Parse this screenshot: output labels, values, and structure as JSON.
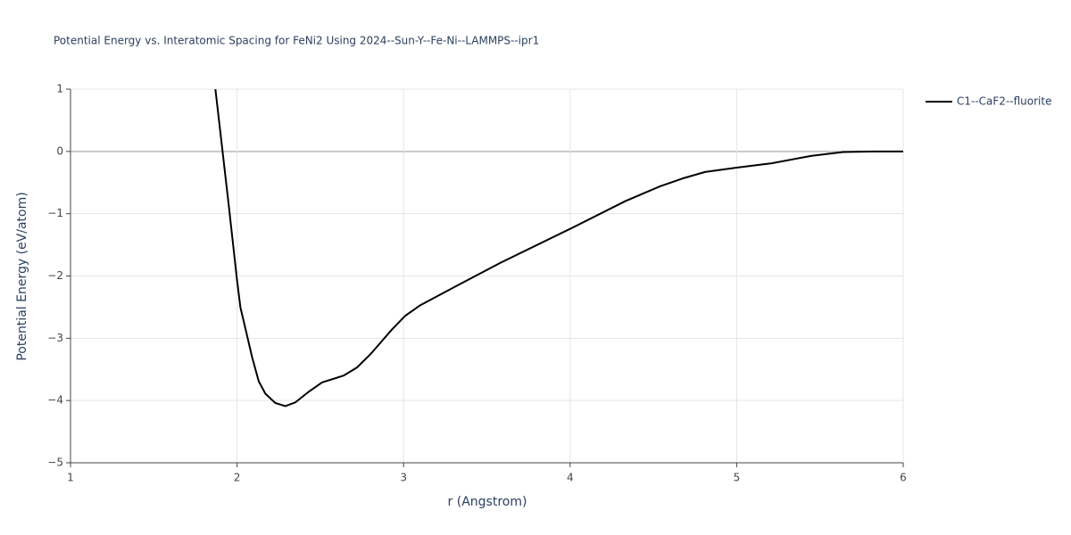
{
  "chart_data": {
    "type": "line",
    "title": "Potential Energy vs. Interatomic Spacing for FeNi2 Using 2024--Sun-Y--Fe-Ni--LAMMPS--ipr1",
    "x_label": "r (Angstrom)",
    "y_label": "Potential Energy (eV/atom)",
    "series": [
      {
        "name": "C1--CaF2--fluorite",
        "color": "#000000",
        "x": [
          1.87,
          1.95,
          2.0,
          2.02,
          2.07,
          2.09,
          2.13,
          2.17,
          2.23,
          2.29,
          2.35,
          2.43,
          2.51,
          2.64,
          2.72,
          2.8,
          2.93,
          3.01,
          3.1,
          3.36,
          3.58,
          4.01,
          4.33,
          4.54,
          4.68,
          4.81,
          5.0,
          5.21,
          5.45,
          5.64,
          5.82,
          6.0
        ],
        "values": [
          1,
          -0.86,
          -2.07,
          -2.5,
          -3.07,
          -3.3,
          -3.69,
          -3.89,
          -4.04,
          -4.09,
          -4.03,
          -3.86,
          -3.71,
          -3.6,
          -3.47,
          -3.26,
          -2.86,
          -2.64,
          -2.47,
          -2.1,
          -1.79,
          -1.23,
          -0.8,
          -0.56,
          -0.43,
          -0.33,
          -0.26,
          -0.19,
          -0.07,
          -0.01,
          0,
          0
        ]
      }
    ],
    "xlim": [
      1,
      6
    ],
    "xticks": [
      1,
      2,
      3,
      4,
      5,
      6
    ],
    "ylim": [
      -5,
      1
    ],
    "yticks": [
      {
        "value": -5,
        "label": "−5"
      },
      {
        "value": -4,
        "label": "−4"
      },
      {
        "value": -3,
        "label": "−3"
      },
      {
        "value": -2,
        "label": "−2"
      },
      {
        "value": -1,
        "label": "−1"
      },
      0,
      1
    ],
    "grid": true,
    "legend": "right"
  }
}
